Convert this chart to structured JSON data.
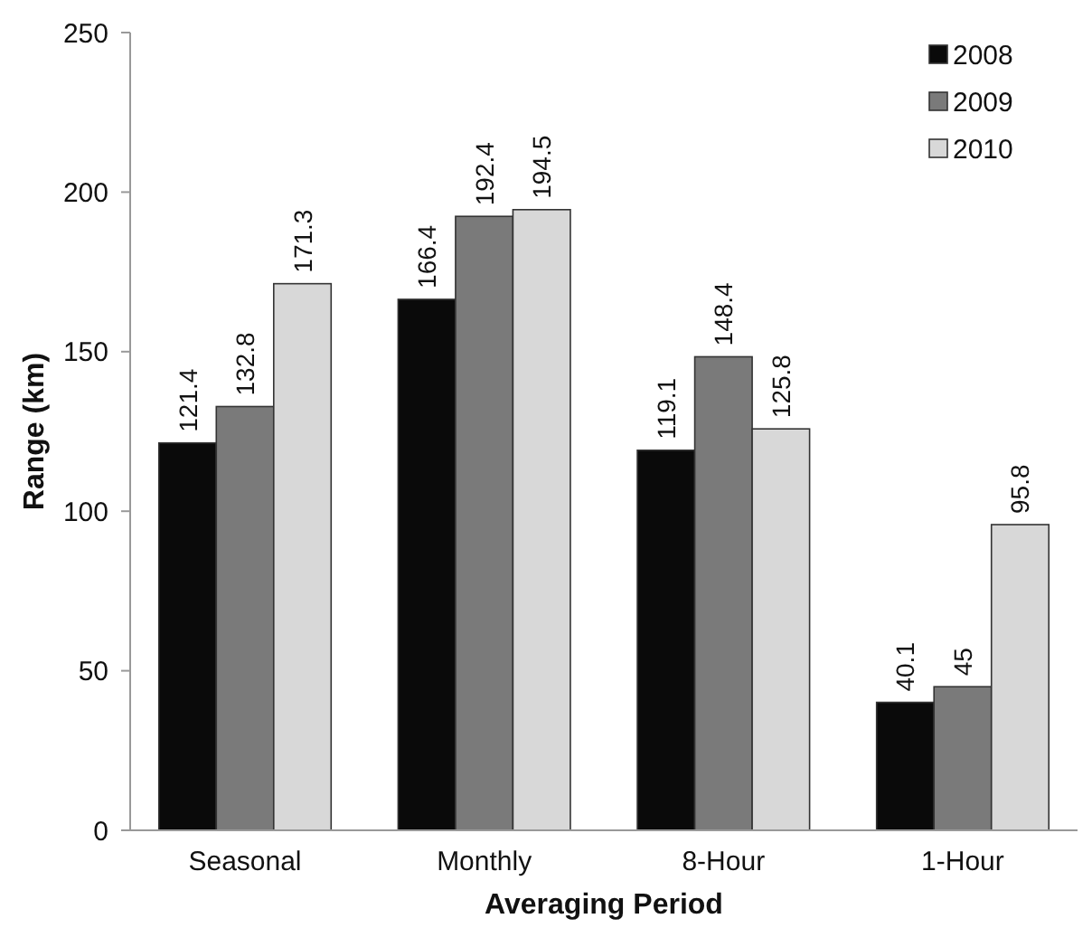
{
  "chart_data": {
    "type": "bar",
    "xlabel": "Averaging Period",
    "ylabel": "Range (km)",
    "categories": [
      "Seasonal",
      "Monthly",
      "8-Hour",
      "1-Hour"
    ],
    "series": [
      {
        "name": "2008",
        "color": "#0a0a0a",
        "values": [
          121.4,
          166.4,
          119.1,
          40.1
        ]
      },
      {
        "name": "2009",
        "color": "#7a7a7a",
        "values": [
          132.8,
          192.4,
          148.4,
          45
        ]
      },
      {
        "name": "2010",
        "color": "#d8d8d8",
        "values": [
          171.3,
          194.5,
          125.8,
          95.8
        ]
      }
    ],
    "ylim": [
      0,
      250
    ],
    "yticks": [
      0,
      50,
      100,
      150,
      200,
      250
    ],
    "data_labels": true,
    "legend": "top right",
    "grid": false
  }
}
